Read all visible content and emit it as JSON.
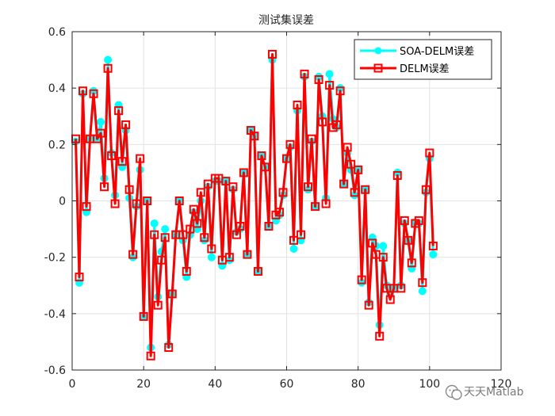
{
  "chart_data": {
    "type": "line",
    "title": "测试集误差",
    "xlabel": "",
    "ylabel": "",
    "xlim": [
      0,
      120
    ],
    "ylim": [
      -0.6,
      0.6
    ],
    "xticks": [
      0,
      20,
      40,
      60,
      80,
      100,
      120
    ],
    "yticks": [
      -0.6,
      -0.4,
      -0.2,
      0,
      0.2,
      0.4,
      0.6
    ],
    "grid": true,
    "legend_position": "top-right",
    "x": [
      1,
      2,
      3,
      4,
      5,
      6,
      7,
      8,
      9,
      10,
      11,
      12,
      13,
      14,
      15,
      16,
      17,
      18,
      19,
      20,
      21,
      22,
      23,
      24,
      25,
      26,
      27,
      28,
      29,
      30,
      31,
      32,
      33,
      34,
      35,
      36,
      37,
      38,
      39,
      40,
      41,
      42,
      43,
      44,
      45,
      46,
      47,
      48,
      49,
      50,
      51,
      52,
      53,
      54,
      55,
      56,
      57,
      58,
      59,
      60,
      61,
      62,
      63,
      64,
      65,
      66,
      67,
      68,
      69,
      70,
      71,
      72,
      73,
      74,
      75,
      76,
      77,
      78,
      79,
      80,
      81,
      82,
      83,
      84,
      85,
      86,
      87,
      88,
      89,
      90,
      91,
      92,
      93,
      94,
      95,
      96,
      97,
      98,
      99,
      100,
      101
    ],
    "series": [
      {
        "name": "SOA-DELM误差",
        "color": "#00ffff",
        "marker": "circle",
        "values": [
          0.21,
          -0.29,
          0.38,
          -0.04,
          0.22,
          0.39,
          0.22,
          0.28,
          0.08,
          0.5,
          0.17,
          0.02,
          0.34,
          0.12,
          0.25,
          0.01,
          -0.2,
          -0.02,
          0.11,
          -0.41,
          0.0,
          -0.52,
          -0.08,
          -0.34,
          -0.18,
          -0.1,
          -0.51,
          -0.33,
          -0.12,
          0.0,
          -0.14,
          -0.27,
          -0.12,
          -0.04,
          -0.1,
          0.0,
          -0.14,
          0.05,
          -0.2,
          0.07,
          0.07,
          -0.23,
          0.07,
          -0.21,
          0.04,
          -0.11,
          -0.1,
          0.1,
          -0.19,
          0.25,
          0.23,
          -0.25,
          0.16,
          0.12,
          -0.09,
          0.5,
          -0.07,
          -0.05,
          0.02,
          0.15,
          0.19,
          -0.17,
          0.32,
          -0.14,
          0.44,
          0.04,
          0.21,
          -0.02,
          0.44,
          0.3,
          0.01,
          0.45,
          0.29,
          0.26,
          0.4,
          0.06,
          0.17,
          0.11,
          0.02,
          0.11,
          -0.29,
          0.04,
          -0.36,
          -0.13,
          -0.16,
          -0.44,
          -0.16,
          -0.3,
          -0.33,
          -0.31,
          0.1,
          -0.3,
          -0.08,
          -0.14,
          -0.24,
          -0.08,
          -0.08,
          -0.32,
          0.03,
          0.15,
          -0.19
        ]
      },
      {
        "name": "DELM误差",
        "color": "#ff0000",
        "marker": "square",
        "values": [
          0.22,
          -0.27,
          0.39,
          -0.02,
          0.22,
          0.38,
          0.22,
          0.24,
          0.05,
          0.47,
          0.16,
          -0.01,
          0.32,
          0.14,
          0.27,
          0.04,
          -0.19,
          -0.01,
          0.15,
          -0.41,
          0.0,
          -0.55,
          -0.12,
          -0.37,
          -0.21,
          -0.13,
          -0.52,
          -0.33,
          -0.12,
          0.0,
          -0.12,
          -0.25,
          -0.1,
          -0.03,
          -0.08,
          0.03,
          -0.13,
          0.06,
          -0.17,
          0.08,
          0.08,
          -0.21,
          0.07,
          -0.2,
          0.05,
          -0.12,
          -0.09,
          0.1,
          -0.19,
          0.25,
          0.23,
          -0.25,
          0.16,
          0.12,
          -0.09,
          0.52,
          -0.05,
          -0.04,
          0.03,
          0.15,
          0.2,
          -0.14,
          0.34,
          -0.12,
          0.45,
          0.05,
          0.22,
          -0.02,
          0.43,
          0.28,
          -0.01,
          0.41,
          0.26,
          0.27,
          0.39,
          0.06,
          0.19,
          0.13,
          0.03,
          0.11,
          -0.28,
          0.04,
          -0.37,
          -0.15,
          -0.19,
          -0.48,
          -0.2,
          -0.31,
          -0.35,
          -0.31,
          0.09,
          -0.31,
          -0.07,
          -0.14,
          -0.22,
          -0.08,
          -0.07,
          -0.29,
          0.04,
          0.17,
          -0.16
        ]
      }
    ]
  },
  "watermark": {
    "icon": "wechat-icon",
    "text": "天天Matlab"
  }
}
